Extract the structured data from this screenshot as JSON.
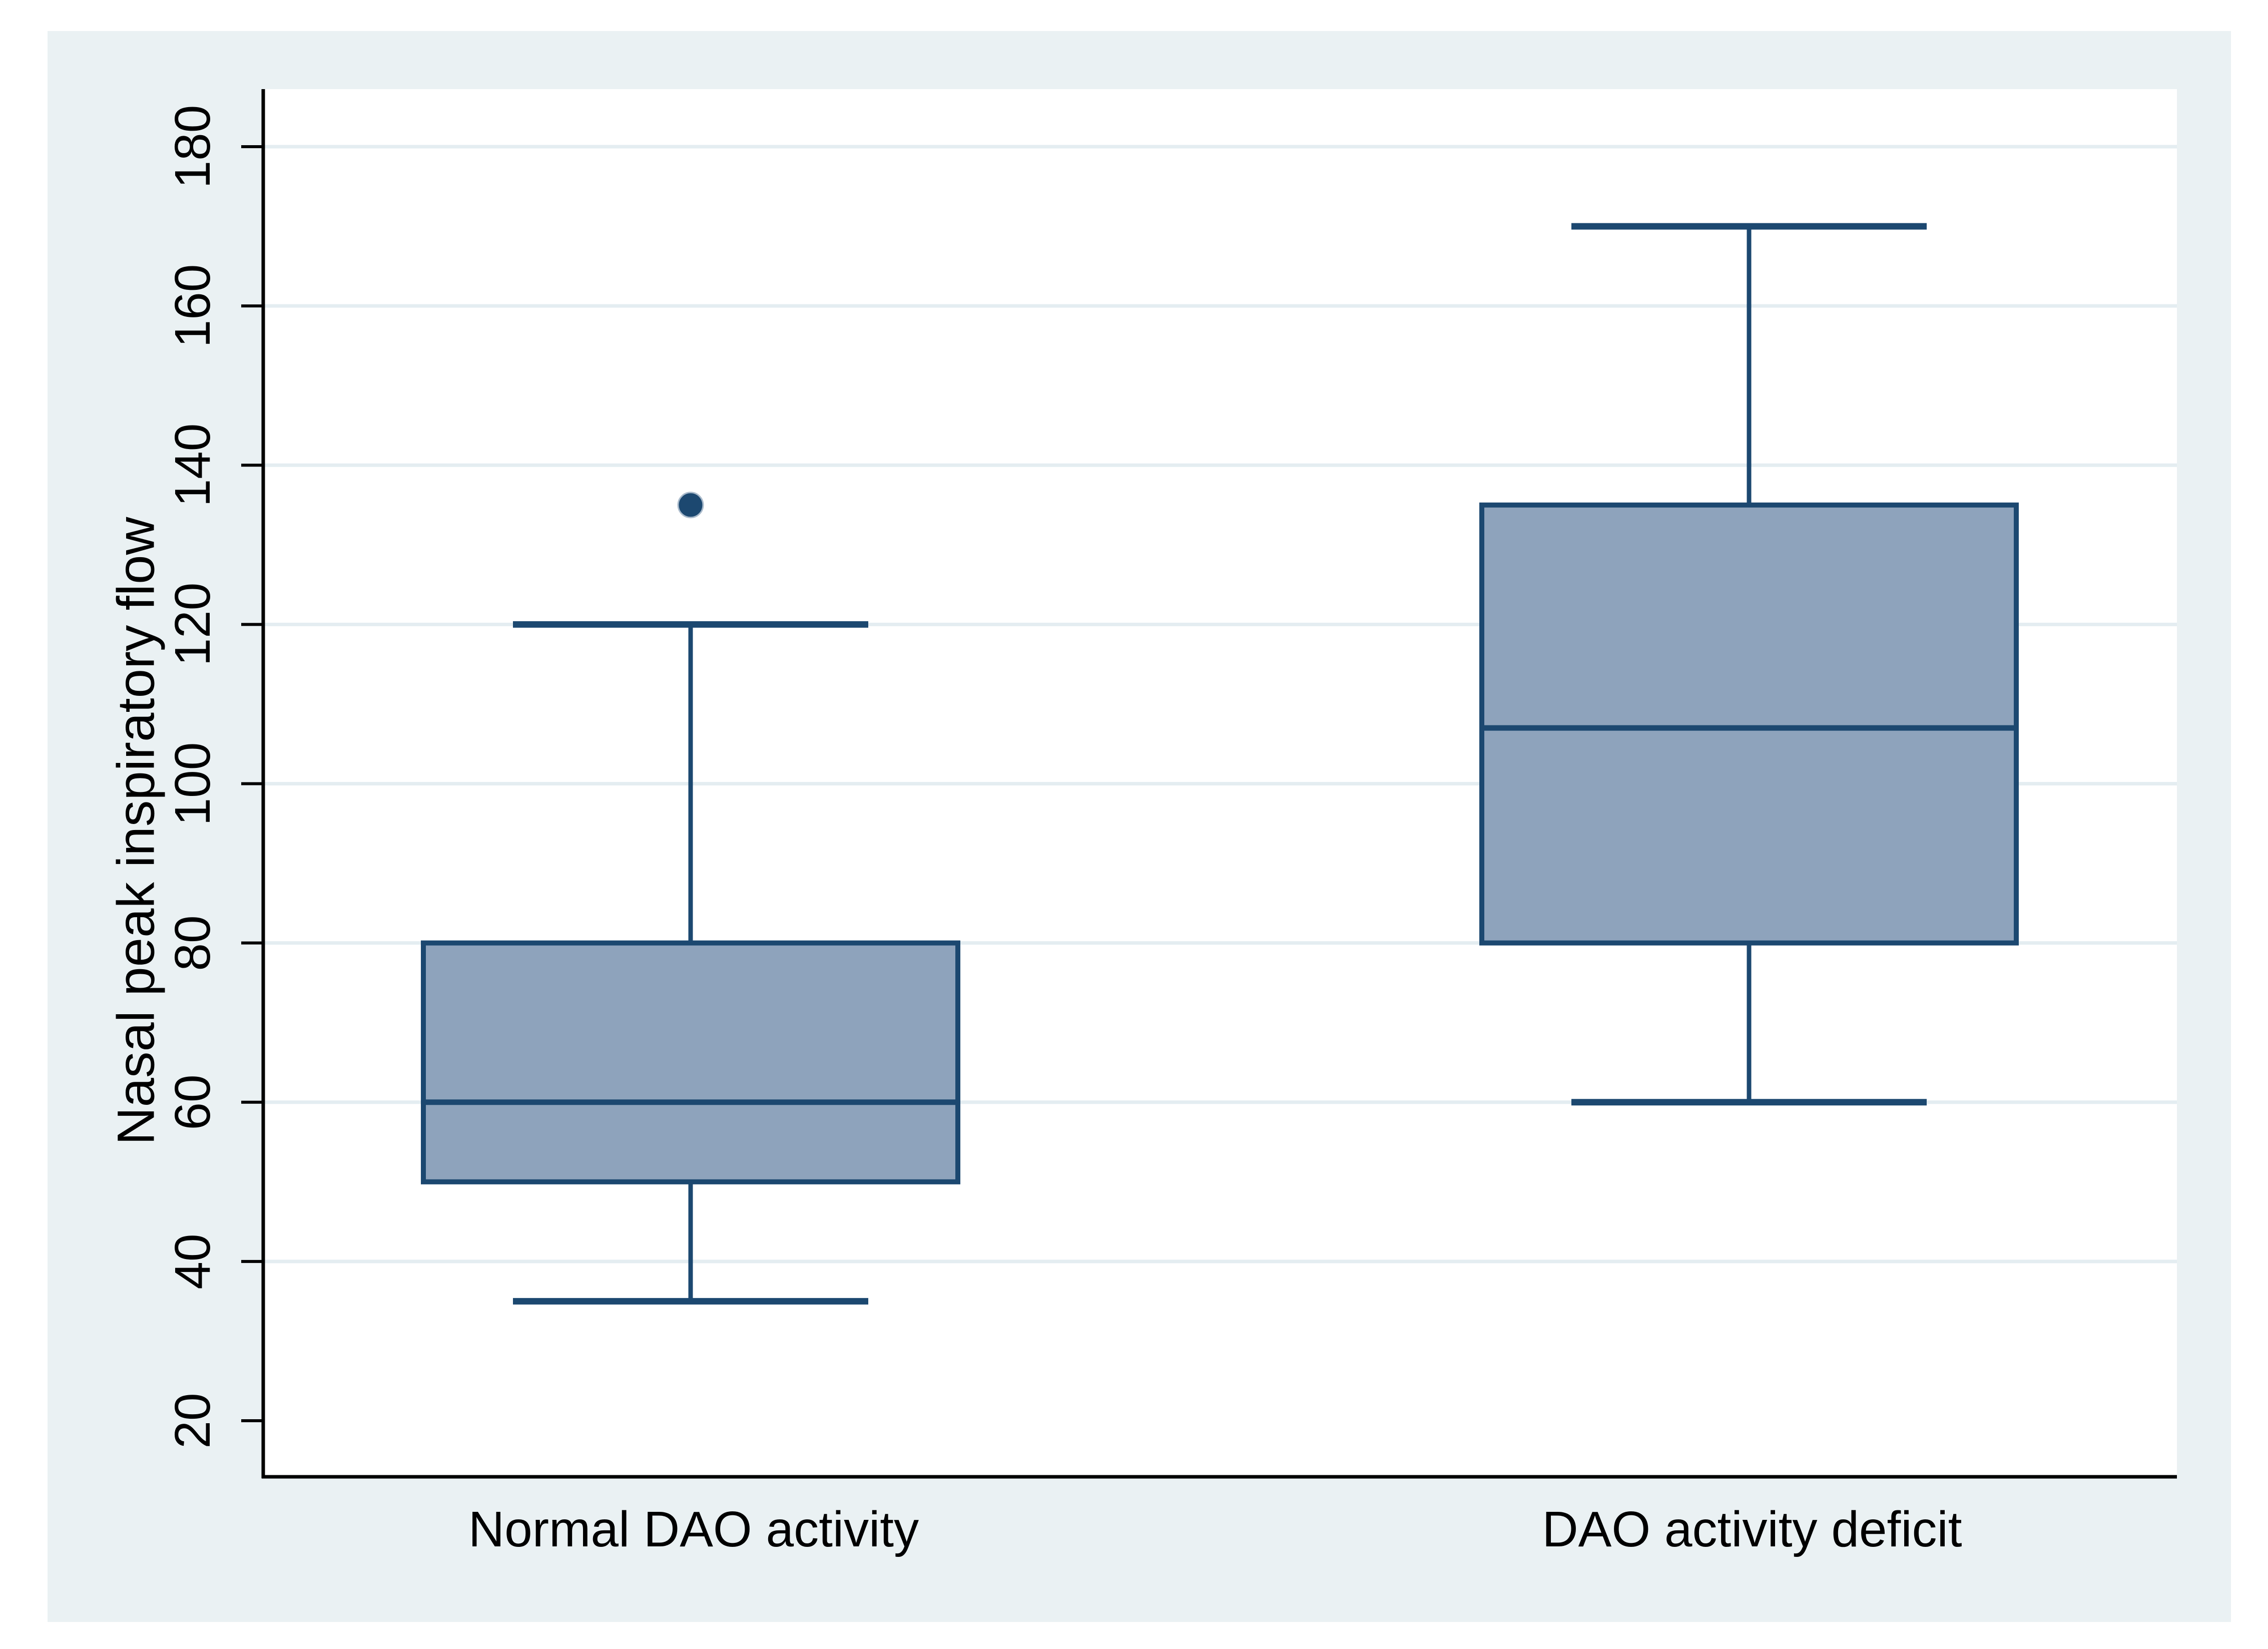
{
  "figure": {
    "title": "",
    "y_axis_title": "Nasal peak inspiratory flow"
  },
  "chart_data": {
    "type": "box",
    "title": "",
    "xlabel": "",
    "ylabel": "Nasal peak inspiratory flow",
    "categories": [
      "Normal DAO activity",
      "DAO activity deficit"
    ],
    "series": [
      {
        "name": "Normal DAO activity",
        "whisker_low": 35,
        "q1": 50,
        "median": 60,
        "q3": 80,
        "whisker_high": 120,
        "outliers": [
          135
        ]
      },
      {
        "name": "DAO activity deficit",
        "whisker_low": 60,
        "q1": 80,
        "median": 107,
        "q3": 135,
        "whisker_high": 170,
        "outliers": []
      }
    ],
    "yticks": [
      20,
      40,
      60,
      80,
      100,
      120,
      140,
      160,
      180
    ],
    "gridline_ticks": [
      40,
      60,
      80,
      100,
      120,
      140,
      160,
      180
    ],
    "ylim": [
      13,
      187
    ],
    "grid": "horizontal",
    "legend_position": "none",
    "colors": {
      "canvas_background": "#eaf1f3",
      "plot_background": "#ffffff",
      "gridline": "#e4edf1",
      "box_fill": "#8ea3bc",
      "box_line": "#1c4870",
      "axis_line": "#000000",
      "label_text": "#000000"
    }
  }
}
